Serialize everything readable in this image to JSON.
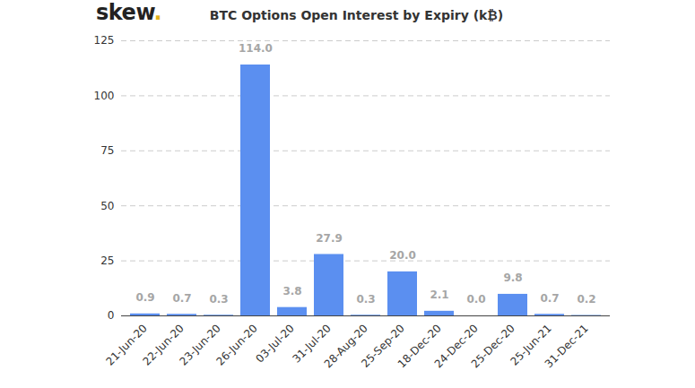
{
  "chart_data": {
    "type": "bar",
    "title": "BTC Options Open Interest by Expiry (k₿)",
    "source": "skew.",
    "categories": [
      "21-Jun-20",
      "22-Jun-20",
      "23-Jun-20",
      "26-Jun-20",
      "03-Jul-20",
      "31-Jul-20",
      "28-Aug-20",
      "25-Sep-20",
      "18-Dec-20",
      "24-Dec-20",
      "25-Dec-20",
      "25-Jun-21",
      "31-Dec-21"
    ],
    "values": [
      0.9,
      0.7,
      0.3,
      114,
      3.8,
      27.9,
      0.3,
      20,
      2.1,
      0,
      9.8,
      0.7,
      0.2
    ],
    "value_labels": [
      "0.9",
      "0.7",
      "0.3",
      "114.0",
      "3.8",
      "27.9",
      "0.3",
      "20.0",
      "2.1",
      "0.0",
      "9.8",
      "0.7",
      "0.2"
    ],
    "data_labels": true,
    "color": "#5b8ff0",
    "ylim": [
      0,
      125
    ],
    "yticks": [
      0,
      25,
      50,
      75,
      100,
      125
    ],
    "grid": true
  }
}
